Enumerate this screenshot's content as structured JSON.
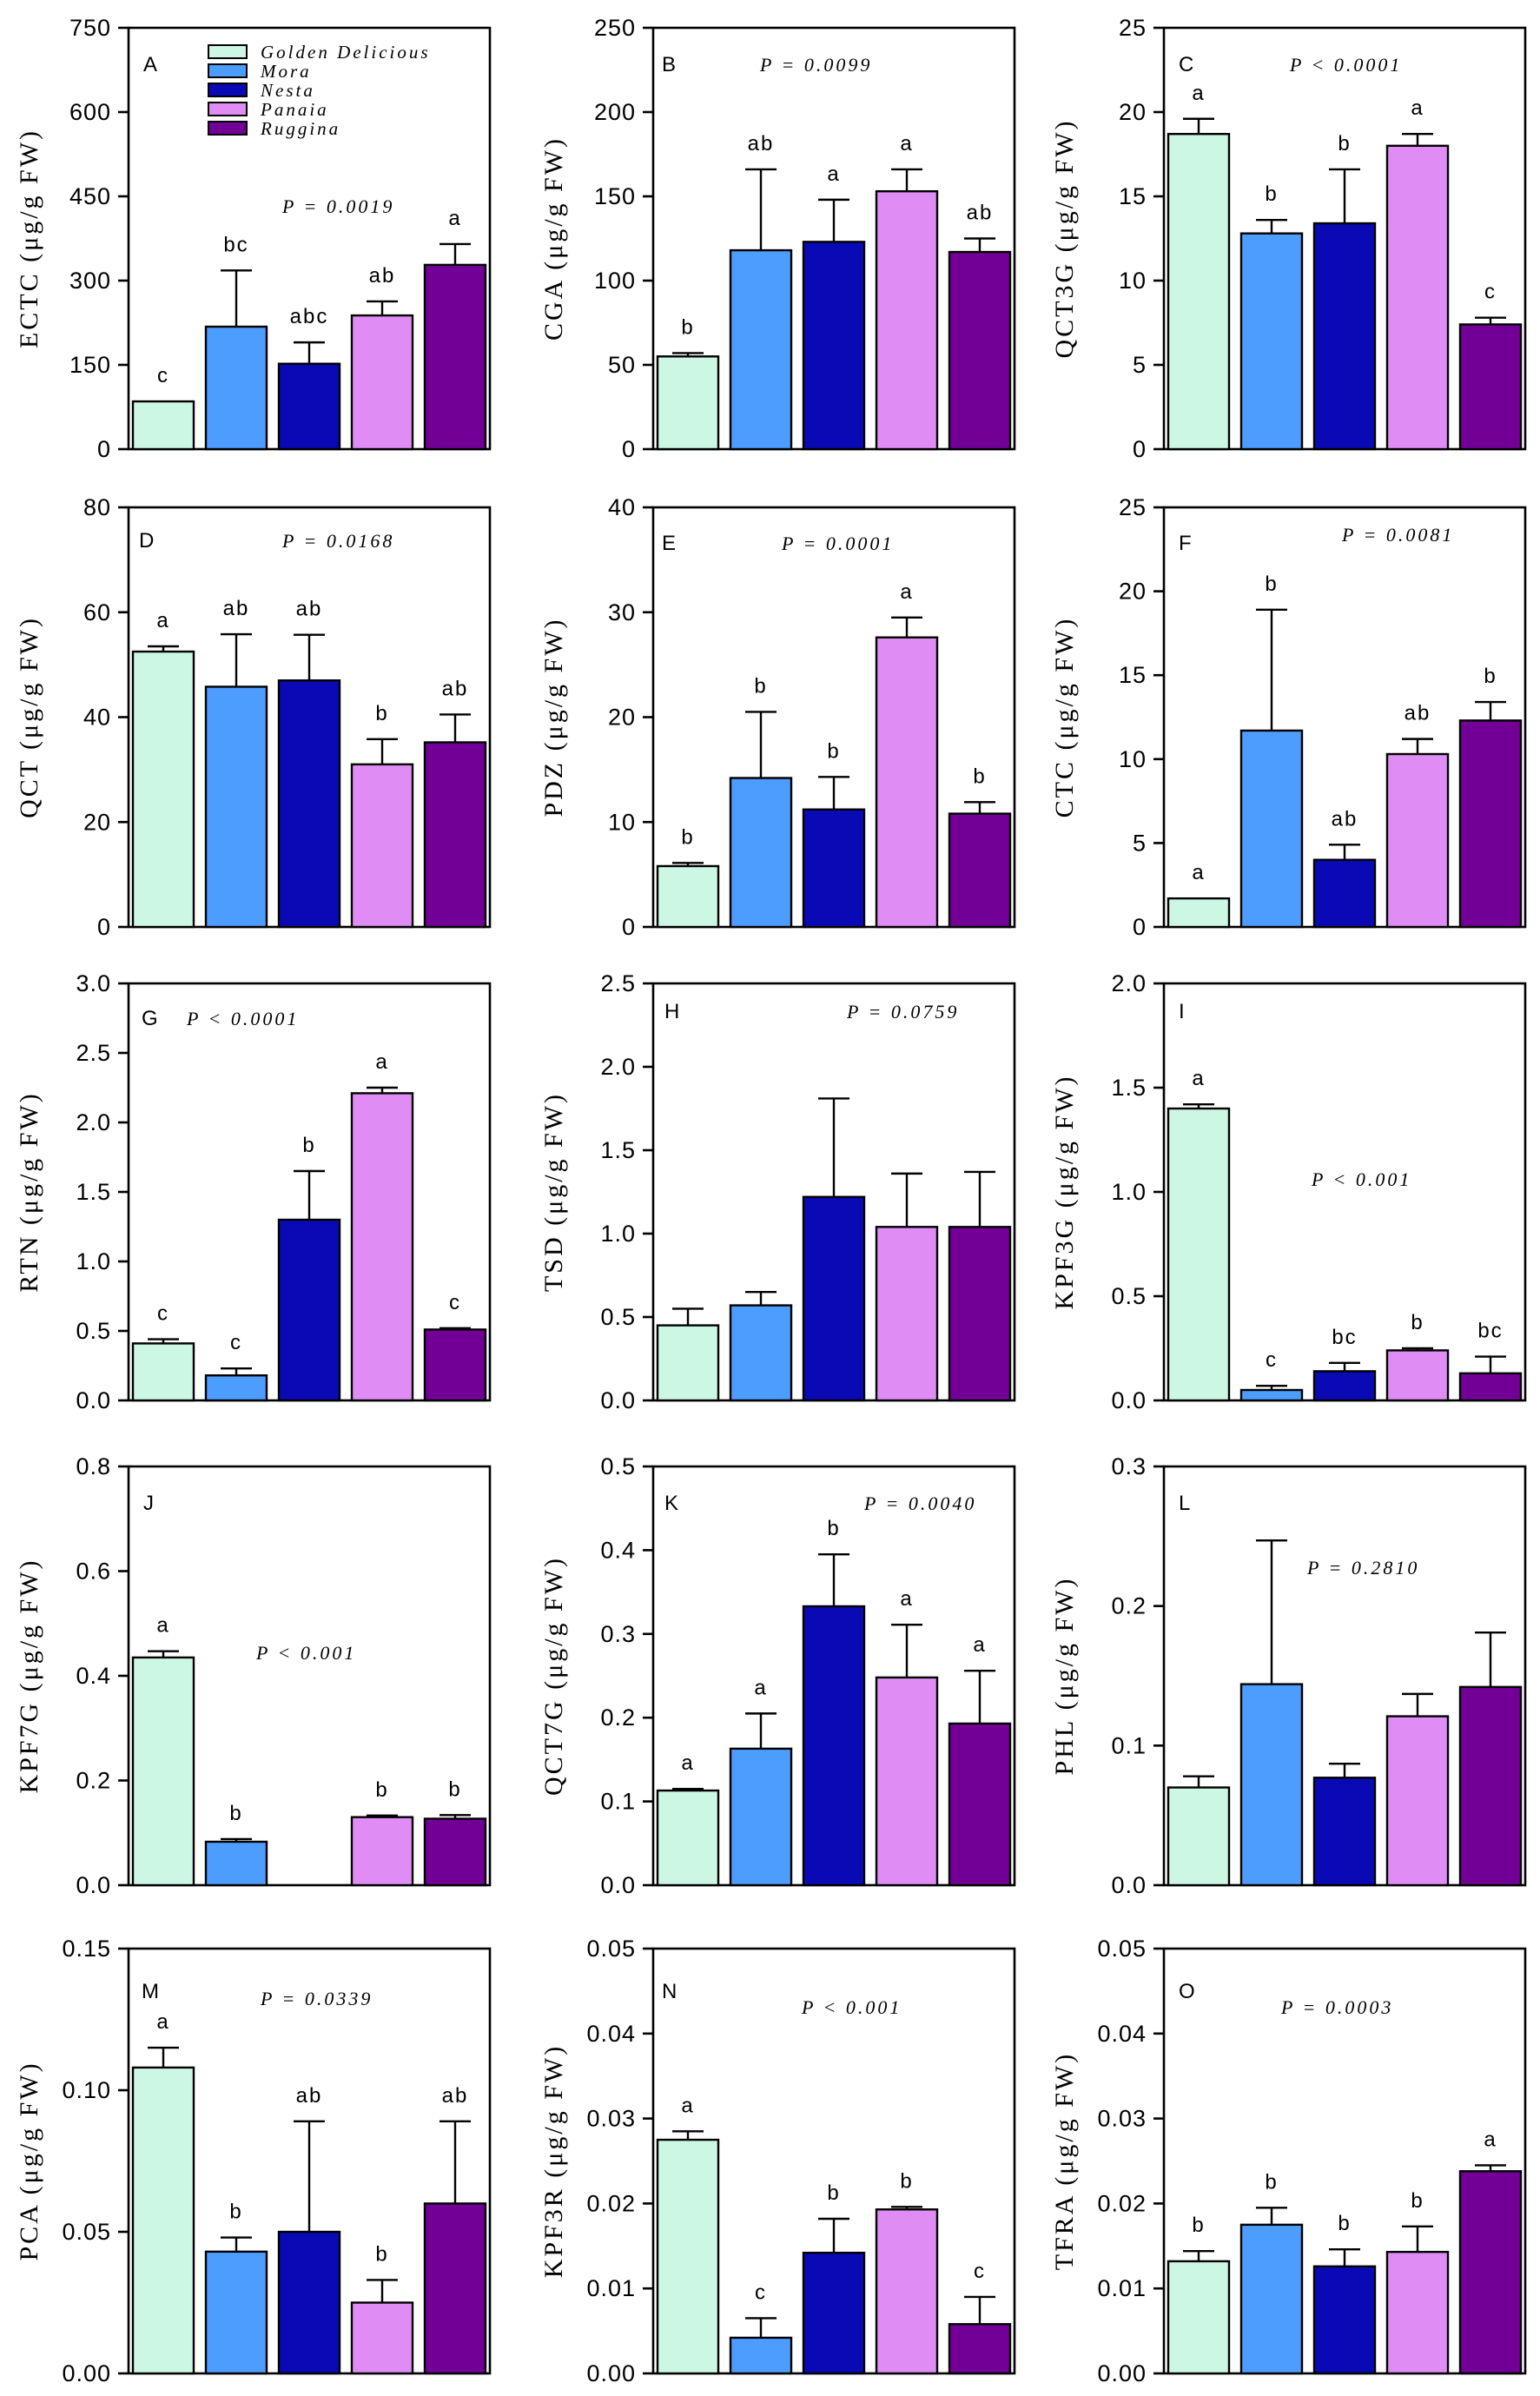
{
  "figure": {
    "legend": [
      {
        "name": "Golden Delicious",
        "color": "#ccf7e5"
      },
      {
        "name": "Mora",
        "color": "#4d9cff"
      },
      {
        "name": "Nesta",
        "color": "#0a0ab5"
      },
      {
        "name": "Panaia",
        "color": "#e08cf5"
      },
      {
        "name": "Ruggina",
        "color": "#730096"
      }
    ]
  },
  "chart_data": [
    {
      "type": "bar",
      "panel": "A",
      "ylabel": "ECTC (μg/g FW)",
      "pvalue": "P = 0.0019",
      "ylim": [
        0,
        750
      ],
      "yticks": [
        "0",
        "150",
        "300",
        "450",
        "600",
        "750"
      ],
      "values": [
        85,
        218,
        152,
        238,
        328
      ],
      "errors": [
        0,
        100,
        38,
        25,
        37
      ],
      "letters": [
        "c",
        "bc",
        "abc",
        "ab",
        "a"
      ]
    },
    {
      "type": "bar",
      "panel": "B",
      "ylabel": "CGA (μg/g FW)",
      "pvalue": "P = 0.0099",
      "ylim": [
        0,
        250
      ],
      "yticks": [
        "0",
        "50",
        "100",
        "150",
        "200",
        "250"
      ],
      "values": [
        55,
        118,
        123,
        153,
        117
      ],
      "errors": [
        2,
        48,
        25,
        13,
        8
      ],
      "letters": [
        "b",
        "ab",
        "a",
        "a",
        "ab"
      ]
    },
    {
      "type": "bar",
      "panel": "C",
      "ylabel": "QCT3G (μg/g FW)",
      "pvalue": "P < 0.0001",
      "ylim": [
        0,
        25
      ],
      "yticks": [
        "0",
        "5",
        "10",
        "15",
        "20",
        "25"
      ],
      "values": [
        18.7,
        12.8,
        13.4,
        18.0,
        7.4
      ],
      "errors": [
        0.9,
        0.8,
        3.2,
        0.7,
        0.4
      ],
      "letters": [
        "a",
        "b",
        "b",
        "a",
        "c"
      ]
    },
    {
      "type": "bar",
      "panel": "D",
      "ylabel": "QCT (μg/g FW)",
      "pvalue": "P = 0.0168",
      "ylim": [
        0,
        80
      ],
      "yticks": [
        "0",
        "20",
        "40",
        "60",
        "80"
      ],
      "values": [
        52.5,
        45.8,
        47.0,
        31.0,
        35.2
      ],
      "errors": [
        1,
        10,
        8.7,
        4.8,
        5.3
      ],
      "letters": [
        "a",
        "ab",
        "ab",
        "b",
        "ab"
      ]
    },
    {
      "type": "bar",
      "panel": "E",
      "ylabel": "PDZ (μg/g FW)",
      "pvalue": "P = 0.0001",
      "ylim": [
        0,
        40
      ],
      "yticks": [
        "0",
        "10",
        "20",
        "30",
        "40"
      ],
      "values": [
        5.8,
        14.2,
        11.2,
        27.6,
        10.8
      ],
      "errors": [
        0.3,
        6.3,
        3.1,
        1.9,
        1.1
      ],
      "letters": [
        "b",
        "b",
        "b",
        "a",
        "b"
      ]
    },
    {
      "type": "bar",
      "panel": "F",
      "ylabel": "CTC (μg/g FW)",
      "pvalue": "P = 0.0081",
      "ylim": [
        0,
        25
      ],
      "yticks": [
        "0",
        "5",
        "10",
        "15",
        "20",
        "25"
      ],
      "values": [
        1.7,
        11.7,
        4.0,
        10.3,
        12.3
      ],
      "errors": [
        0,
        7.2,
        0.9,
        0.9,
        1.1
      ],
      "letters": [
        "a",
        "b",
        "ab",
        "ab",
        "b"
      ]
    },
    {
      "type": "bar",
      "panel": "G",
      "ylabel": "RTN (μg/g FW)",
      "pvalue": "P < 0.0001",
      "ylim": [
        0,
        3.0
      ],
      "yticks": [
        "0.0",
        "0.5",
        "1.0",
        "1.5",
        "2.0",
        "2.5",
        "3.0"
      ],
      "values": [
        0.41,
        0.18,
        1.3,
        2.21,
        0.51
      ],
      "errors": [
        0.03,
        0.05,
        0.35,
        0.04,
        0.01
      ],
      "letters": [
        "c",
        "c",
        "b",
        "a",
        "c"
      ]
    },
    {
      "type": "bar",
      "panel": "H",
      "ylabel": "TSD (μg/g FW)",
      "pvalue": "P = 0.0759",
      "ylim": [
        0,
        2.5
      ],
      "yticks": [
        "0.0",
        "0.5",
        "1.0",
        "1.5",
        "2.0",
        "2.5"
      ],
      "values": [
        0.45,
        0.57,
        1.22,
        1.04,
        1.04
      ],
      "errors": [
        0.1,
        0.08,
        0.59,
        0.32,
        0.33
      ],
      "letters": [
        "",
        "",
        "",
        "",
        ""
      ]
    },
    {
      "type": "bar",
      "panel": "I",
      "ylabel": "KPF3G (μg/g FW)",
      "pvalue": "P < 0.001",
      "ylim": [
        0,
        2.0
      ],
      "yticks": [
        "0.0",
        "0.5",
        "1.0",
        "1.5",
        "2.0"
      ],
      "values": [
        1.4,
        0.05,
        0.14,
        0.24,
        0.13
      ],
      "errors": [
        0.02,
        0.02,
        0.04,
        0.01,
        0.08
      ],
      "letters": [
        "a",
        "c",
        "bc",
        "b",
        "bc"
      ]
    },
    {
      "type": "bar",
      "panel": "J",
      "ylabel": "KPF7G (μg/g FW)",
      "pvalue": "P < 0.001",
      "ylim": [
        0,
        0.8
      ],
      "yticks": [
        "0.0",
        "0.2",
        "0.4",
        "0.6",
        "0.8"
      ],
      "values": [
        0.435,
        0.083,
        0,
        0.13,
        0.127
      ],
      "errors": [
        0.012,
        0.005,
        0,
        0.003,
        0.007
      ],
      "letters": [
        "a",
        "b",
        "",
        "b",
        "b"
      ]
    },
    {
      "type": "bar",
      "panel": "K",
      "ylabel": "QCT7G (μg/g FW)",
      "pvalue": "P = 0.0040",
      "ylim": [
        0,
        0.5
      ],
      "yticks": [
        "0.0",
        "0.1",
        "0.2",
        "0.3",
        "0.4",
        "0.5"
      ],
      "values": [
        0.113,
        0.163,
        0.333,
        0.248,
        0.193
      ],
      "errors": [
        0.002,
        0.042,
        0.062,
        0.063,
        0.063
      ],
      "letters": [
        "a",
        "a",
        "b",
        "a",
        "a"
      ]
    },
    {
      "type": "bar",
      "panel": "L",
      "ylabel": "PHL (μg/g FW)",
      "pvalue": "P = 0.2810",
      "ylim": [
        0,
        0.3
      ],
      "yticks": [
        "0.0",
        "0.1",
        "0.2",
        "0.3"
      ],
      "values": [
        0.07,
        0.144,
        0.077,
        0.121,
        0.142
      ],
      "errors": [
        0.008,
        0.103,
        0.01,
        0.016,
        0.039
      ],
      "letters": [
        "",
        "",
        "",
        "",
        ""
      ]
    },
    {
      "type": "bar",
      "panel": "M",
      "ylabel": "PCA (μg/g FW)",
      "pvalue": "P = 0.0339",
      "ylim": [
        0,
        0.15
      ],
      "yticks": [
        "0.00",
        "0.05",
        "0.10",
        "0.15"
      ],
      "values": [
        0.108,
        0.043,
        0.05,
        0.025,
        0.06
      ],
      "errors": [
        0.007,
        0.005,
        0.039,
        0.008,
        0.029
      ],
      "letters": [
        "a",
        "b",
        "ab",
        "b",
        "ab"
      ]
    },
    {
      "type": "bar",
      "panel": "N",
      "ylabel": "KPF3R (μg/g FW)",
      "pvalue": "P < 0.001",
      "ylim": [
        0,
        0.05
      ],
      "yticks": [
        "0.00",
        "0.01",
        "0.02",
        "0.03",
        "0.04",
        "0.05"
      ],
      "values": [
        0.0275,
        0.0042,
        0.0142,
        0.0193,
        0.0058
      ],
      "errors": [
        0.001,
        0.0023,
        0.004,
        0.0003,
        0.0032
      ],
      "letters": [
        "a",
        "c",
        "b",
        "b",
        "c"
      ]
    },
    {
      "type": "bar",
      "panel": "O",
      "ylabel": "TFRA (μg/g FW)",
      "pvalue": "P = 0.0003",
      "ylim": [
        0,
        0.05
      ],
      "yticks": [
        "0.00",
        "0.01",
        "0.02",
        "0.03",
        "0.04",
        "0.05"
      ],
      "values": [
        0.0132,
        0.0175,
        0.0126,
        0.0143,
        0.0238
      ],
      "errors": [
        0.0012,
        0.002,
        0.002,
        0.003,
        0.0007
      ],
      "letters": [
        "b",
        "b",
        "b",
        "b",
        "a"
      ]
    }
  ]
}
